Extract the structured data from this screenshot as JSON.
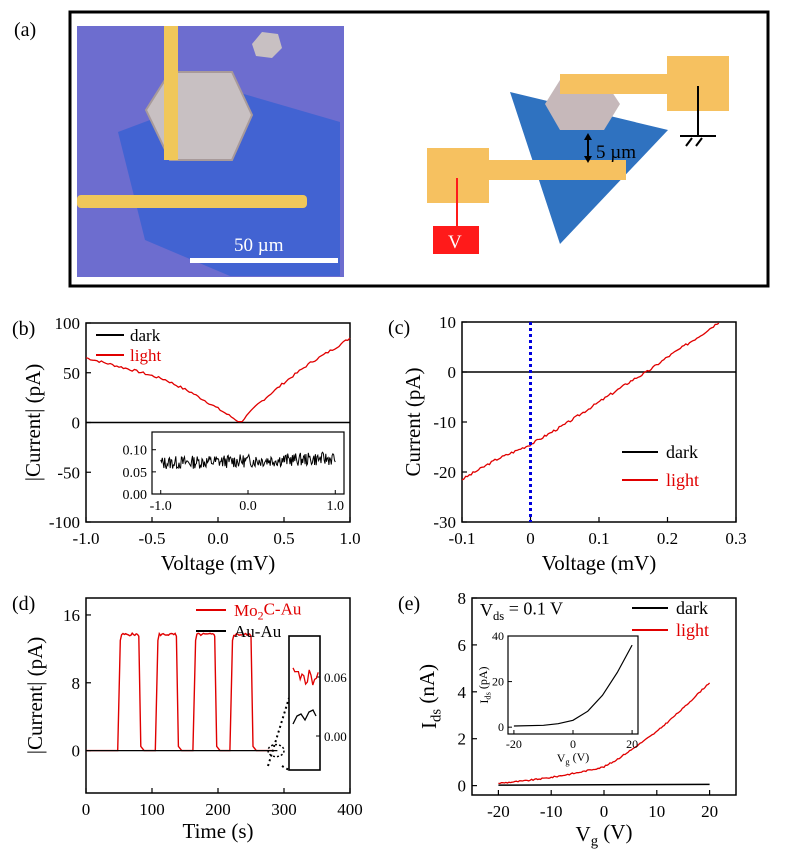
{
  "panel_a": {
    "label": "(a)",
    "scale_bar": "50 µm",
    "gap_label": "5 µm",
    "voltage_label": "V",
    "colors": {
      "substrate": "#6f6fd0",
      "flake": "#3d6fd6",
      "electrode": "#f5c360",
      "mo2c": "#c7b9bb",
      "source": "#ff1a1a"
    }
  },
  "chart_data": [
    {
      "id": "b",
      "type": "line",
      "label": "(b)",
      "xlabel": "Voltage (mV)",
      "ylabel": "|Current| (pA)",
      "xlim": [
        -1.0,
        1.0
      ],
      "ylim": [
        -100,
        100
      ],
      "xticks": [
        "-1.0",
        "-0.5",
        "0.0",
        "0.5",
        "1.0"
      ],
      "yticks": [
        "-100",
        "-50",
        "0",
        "50",
        "100"
      ],
      "legend": "top-left",
      "series": [
        {
          "name": "dark",
          "color": "#000000",
          "x": [
            -1.0,
            1.0
          ],
          "y": [
            0,
            0
          ]
        },
        {
          "name": "light",
          "color": "#e00000",
          "x": [
            -1.0,
            -0.8,
            -0.6,
            -0.4,
            -0.2,
            0.0,
            0.17,
            0.3,
            0.5,
            0.7,
            0.9,
            1.0
          ],
          "y": [
            65,
            58,
            51,
            43,
            30,
            14,
            0,
            18,
            40,
            60,
            76,
            85
          ]
        }
      ],
      "inset": {
        "xlim": [
          -1.1,
          1.1
        ],
        "ylim": [
          0,
          0.14
        ],
        "xticks": [
          "-1.0",
          "0.0",
          "1.0"
        ],
        "yticks": [
          "0.00",
          "0.05",
          "0.10"
        ],
        "series": [
          {
            "name": "dark",
            "color": "#000000",
            "x": [
              -1.0,
              1.0
            ],
            "y": [
              0.07,
              0.08
            ],
            "noise": 0.015
          }
        ]
      }
    },
    {
      "id": "c",
      "type": "line",
      "label": "(c)",
      "xlabel": "Voltage (mV)",
      "ylabel": "Current (pA)",
      "xlim": [
        -0.1,
        0.3
      ],
      "ylim": [
        -30,
        10
      ],
      "xticks": [
        "-0.1",
        "0",
        "0.1",
        "0.2",
        "0.3"
      ],
      "yticks": [
        "-30",
        "-20",
        "-10",
        "0",
        "10"
      ],
      "legend": "bottom-right",
      "series": [
        {
          "name": "dark",
          "color": "#000000",
          "x": [
            -0.1,
            0.3
          ],
          "y": [
            0,
            0
          ]
        },
        {
          "name": "light",
          "color": "#e00000",
          "x": [
            -0.1,
            -0.05,
            0.0,
            0.05,
            0.1,
            0.15,
            0.17,
            0.2,
            0.25,
            0.275
          ],
          "y": [
            -21.5,
            -17.5,
            -14.5,
            -10.5,
            -6,
            -1.5,
            0,
            3,
            7.5,
            10
          ]
        }
      ],
      "vline": {
        "x": 0,
        "color": "#0000dd"
      }
    },
    {
      "id": "d",
      "type": "line",
      "label": "(d)",
      "xlabel": "Time (s)",
      "ylabel": "|Current| (pA)",
      "xlim": [
        0,
        400
      ],
      "ylim": [
        -5,
        18
      ],
      "xticks": [
        "0",
        "100",
        "200",
        "300",
        "400"
      ],
      "yticks": [
        "0",
        "8",
        "16"
      ],
      "legend": "top-right",
      "series": [
        {
          "name": "Mo₂C-Au",
          "name_main": "Mo",
          "name_sub": "2",
          "name_rest": "C-Au",
          "color": "#e00000",
          "pulses": [
            [
              48,
              80
            ],
            [
              105,
              137
            ],
            [
              162,
              195
            ],
            [
              218,
              250
            ]
          ],
          "level": 14
        },
        {
          "name": "Au-Au",
          "color": "#000000",
          "x": [
            0,
            290
          ],
          "y": [
            0,
            0
          ]
        }
      ],
      "inset": {
        "yticks": [
          "0.06",
          "0.00"
        ]
      }
    },
    {
      "id": "e",
      "type": "line",
      "label": "(e)",
      "annotation": "V",
      "annotation_sub": "ds",
      "annotation_rest": " = 0.1 V",
      "xlabel": "V",
      "xlabel_sub": "g",
      "xlabel_rest": " (V)",
      "ylabel": "I",
      "ylabel_sub": "ds",
      "ylabel_rest": " (nA)",
      "xlim": [
        -25,
        25
      ],
      "ylim": [
        -0.4,
        8
      ],
      "xticks": [
        "-20",
        "-10",
        "0",
        "10",
        "20"
      ],
      "yticks": [
        "0",
        "2",
        "4",
        "6",
        "8"
      ],
      "legend": "top-right",
      "series": [
        {
          "name": "dark",
          "color": "#000000",
          "x": [
            -20,
            20
          ],
          "y": [
            0.02,
            0.05
          ]
        },
        {
          "name": "light",
          "color": "#e00000",
          "x": [
            -20,
            -15,
            -10,
            -5,
            0,
            2,
            5,
            10,
            15,
            20
          ],
          "y": [
            0.1,
            0.2,
            0.35,
            0.55,
            0.8,
            1.05,
            1.5,
            2.3,
            3.3,
            4.4
          ]
        }
      ],
      "inset": {
        "xlim": [
          -22,
          22
        ],
        "ylim": [
          -3,
          40
        ],
        "xticks": [
          "-20",
          "0",
          "20"
        ],
        "yticks": [
          "0",
          "20",
          "40"
        ],
        "xlabel": "V",
        "xlabel_sub": "g",
        "xlabel_rest": " (V)",
        "ylabel": "I",
        "ylabel_sub": "ds",
        "ylabel_rest": " (pA)",
        "series": [
          {
            "name": "dark",
            "color": "#000000",
            "x": [
              -20,
              -10,
              -5,
              0,
              5,
              10,
              15,
              20
            ],
            "y": [
              0.5,
              0.8,
              1.5,
              3,
              7,
              14,
              24,
              36
            ]
          }
        ]
      }
    }
  ]
}
